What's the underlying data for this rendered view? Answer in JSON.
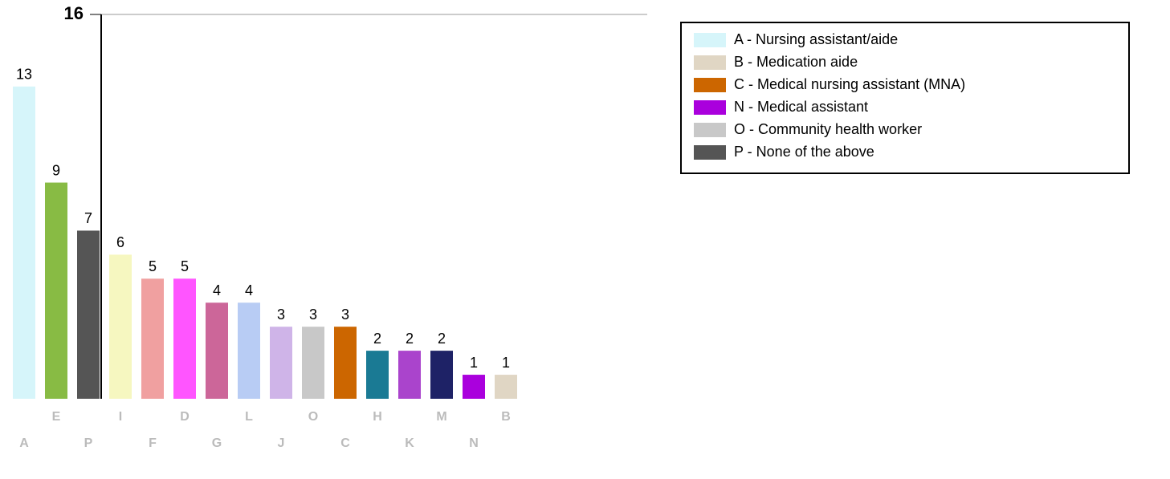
{
  "chart_data": {
    "type": "bar",
    "categories": [
      "A",
      "E",
      "P",
      "I",
      "F",
      "D",
      "G",
      "L",
      "J",
      "O",
      "C",
      "H",
      "K",
      "M",
      "N",
      "B"
    ],
    "values": [
      13,
      9,
      7,
      6,
      5,
      5,
      4,
      4,
      3,
      3,
      3,
      2,
      2,
      2,
      1,
      1
    ],
    "colors": [
      "#d6f5fa",
      "#88bb44",
      "#555555",
      "#f6f7c0",
      "#f0a0a0",
      "#ff55ff",
      "#cc6699",
      "#b8ccf4",
      "#cfb4e8",
      "#c8c8c8",
      "#cc6600",
      "#1a7a94",
      "#aa44cc",
      "#1e2266",
      "#aa00dd",
      "#e0d6c4"
    ],
    "ylim": [
      0,
      16
    ],
    "yticks": [
      16
    ],
    "grid": true,
    "legend": [
      {
        "label": "A - Nursing assistant/aide",
        "color": "#d6f5fa"
      },
      {
        "label": "B - Medication aide",
        "color": "#e0d6c4"
      },
      {
        "label": "C - Medical nursing assistant (MNA)",
        "color": "#cc6600"
      },
      {
        "label": "N - Medical assistant",
        "color": "#aa00dd"
      },
      {
        "label": "O - Community health worker",
        "color": "#c8c8c8"
      },
      {
        "label": "P - None of the above",
        "color": "#555555"
      }
    ]
  }
}
